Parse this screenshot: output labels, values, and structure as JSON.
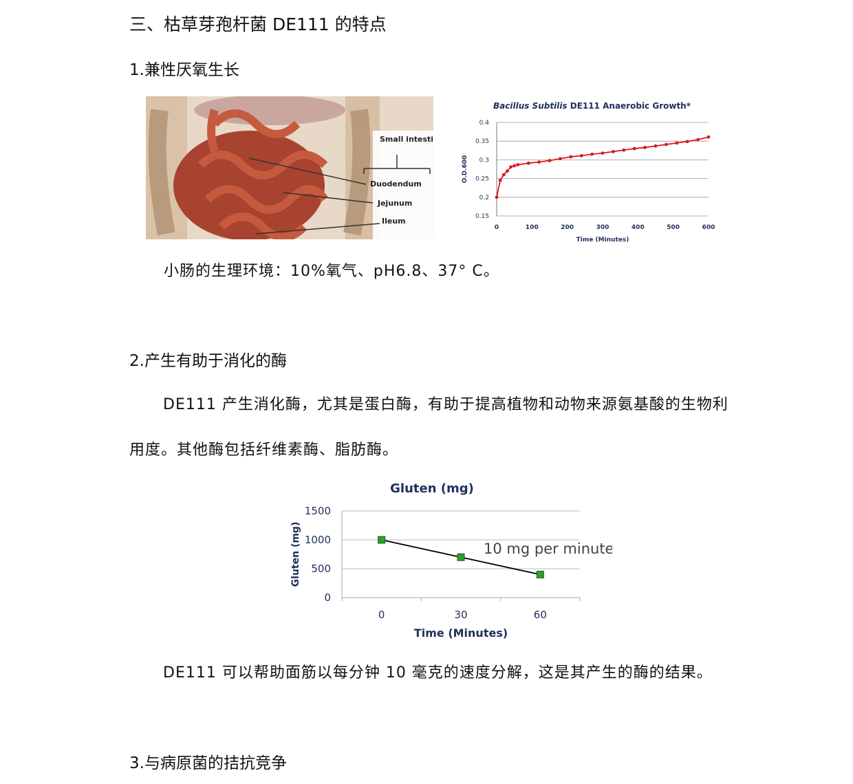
{
  "heading": "三、枯草芽孢杆菌 DE111 的特点",
  "section1": {
    "title": "1.兼性厌氧生长",
    "figure_labels": {
      "small_intestine": "Small intestine",
      "duodendum": "Duodendum",
      "jejunum": "Jejunum",
      "ileum": "Ileum"
    },
    "caption": "小肠的生理环境：10%氧气、pH6.8、37° C。"
  },
  "section2": {
    "title": "2.产生有助于消化的酶",
    "para_line1": "DE111 产生消化酶，尤其是蛋白酶，有助于提高植物和动物来源氨基酸的生物利",
    "para_line2": "用度。其他酶包括纤维素酶、脂肪酶。",
    "caption": "DE111 可以帮助面筋以每分钟 10 毫克的速度分解，这是其产生的酶的结果。"
  },
  "section3": {
    "title": "3.与病原菌的拮抗竞争"
  },
  "chart_data": [
    {
      "type": "line",
      "title_italic": "Bacillus Subtilis",
      "title_rest": "DE111 Anaerobic Growth*",
      "xlabel": "Time (Minutes)",
      "ylabel": "O.D.600",
      "xlim": [
        0,
        600
      ],
      "ylim": [
        0.15,
        0.4
      ],
      "xticks": [
        0,
        100,
        200,
        300,
        400,
        500,
        600
      ],
      "yticks": [
        0.15,
        0.2,
        0.25,
        0.3,
        0.35,
        0.4
      ],
      "grid": true,
      "color": "#d7191c",
      "x": [
        0,
        10,
        20,
        30,
        40,
        50,
        60,
        90,
        120,
        150,
        180,
        210,
        240,
        270,
        300,
        330,
        360,
        390,
        420,
        450,
        480,
        510,
        540,
        570,
        600
      ],
      "y": [
        0.2,
        0.245,
        0.26,
        0.27,
        0.281,
        0.284,
        0.287,
        0.291,
        0.294,
        0.298,
        0.303,
        0.308,
        0.311,
        0.315,
        0.318,
        0.322,
        0.326,
        0.33,
        0.333,
        0.337,
        0.341,
        0.345,
        0.349,
        0.354,
        0.361
      ]
    },
    {
      "type": "line",
      "title": "Gluten (mg)",
      "xlabel": "Time (Minutes)",
      "ylabel": "Gluten (mg)",
      "categories": [
        "0",
        "30",
        "60"
      ],
      "values": [
        1000,
        700,
        400
      ],
      "ylim": [
        0,
        1500
      ],
      "yticks": [
        0,
        500,
        1000,
        1500
      ],
      "grid": true,
      "annotation": "10 mg per minute",
      "marker_color": "#2ca02c",
      "line_color": "#000000"
    }
  ]
}
